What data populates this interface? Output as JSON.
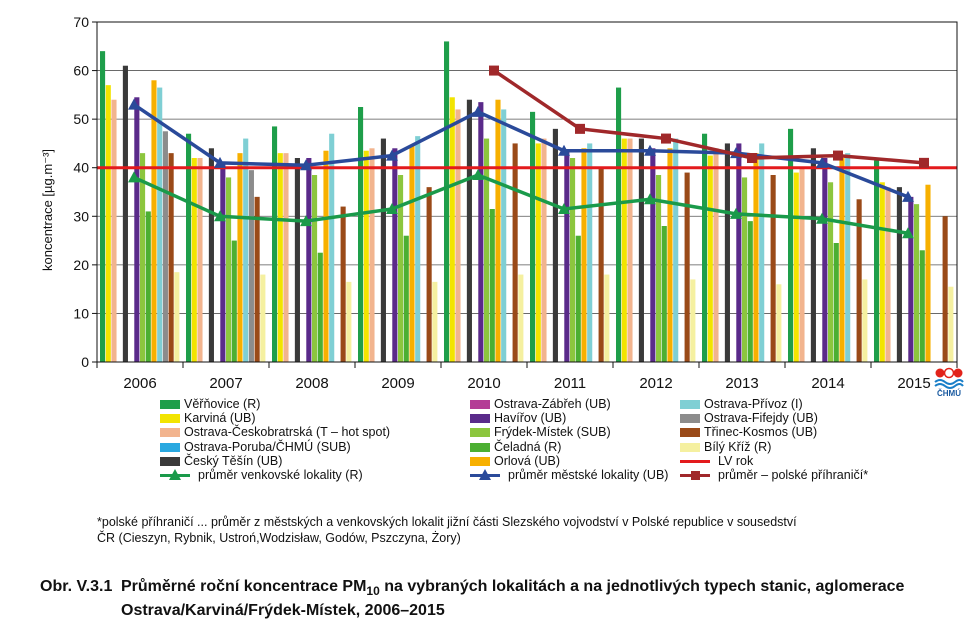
{
  "chart_data": {
    "type": "bar",
    "ylabel": "koncentrace [µg.m⁻³]",
    "ylim": [
      0,
      70
    ],
    "yticks": [
      0,
      10,
      20,
      30,
      40,
      50,
      60,
      70
    ],
    "categories": [
      "2006",
      "2007",
      "2008",
      "2009",
      "2010",
      "2011",
      "2012",
      "2013",
      "2014",
      "2015"
    ],
    "grid": true,
    "limit_value": 40,
    "series": [
      {
        "name": "Věřňovice (R)",
        "color": "#1e9e4a",
        "values": [
          64,
          47,
          48.5,
          52.5,
          66,
          51.5,
          56.5,
          47,
          48,
          41.5
        ]
      },
      {
        "name": "Karviná (UB)",
        "color": "#f2e400",
        "values": [
          57,
          42,
          43,
          43.5,
          54.5,
          45,
          46,
          42.5,
          39,
          37
        ]
      },
      {
        "name": "Ostrava-Českobratrská (T – hot spot)",
        "color": "#f2b48e",
        "values": [
          54,
          42,
          43,
          44,
          52,
          46,
          46,
          44,
          40,
          36
        ]
      },
      {
        "name": "Ostrava-Poruba/ČHMÚ (SUB)",
        "color": "#29a8e0",
        "values": [
          null,
          null,
          null,
          null,
          null,
          null,
          null,
          null,
          null,
          null
        ]
      },
      {
        "name": "Český Těšín (UB)",
        "color": "#3a3a3a",
        "values": [
          61,
          44,
          42,
          46,
          54,
          48,
          46,
          45,
          44,
          36
        ]
      },
      {
        "name": "Ostrava-Zábřeh (UB)",
        "color": "#b43c96",
        "values": [
          null,
          null,
          null,
          null,
          null,
          null,
          null,
          null,
          null,
          null
        ]
      },
      {
        "name": "Havířov (UB)",
        "color": "#5a2a8a",
        "values": [
          54.5,
          41,
          42,
          44,
          53.5,
          43.5,
          44,
          45,
          42,
          34
        ]
      },
      {
        "name": "Frýdek-Místek (SUB)",
        "color": "#8cc63e",
        "values": [
          43,
          38,
          38.5,
          38.5,
          46,
          42,
          38.5,
          38,
          37,
          32.5
        ]
      },
      {
        "name": "Čeladná (R)",
        "color": "#4caf32",
        "values": [
          31,
          25,
          22.5,
          26,
          31.5,
          26,
          28,
          29,
          24.5,
          23
        ]
      },
      {
        "name": "Orlová (UB)",
        "color": "#f7b000",
        "values": [
          58,
          43,
          43.5,
          44.5,
          54,
          44,
          44,
          43,
          42,
          36.5
        ]
      },
      {
        "name": "Ostrava-Přívoz (I)",
        "color": "#7fcfd4",
        "values": [
          56.5,
          46,
          47,
          46.5,
          52,
          45,
          46,
          45,
          43,
          null
        ]
      },
      {
        "name": "Ostrava-Fifejdy (UB)",
        "color": "#8c8c8c",
        "values": [
          47.5,
          39.5,
          null,
          null,
          null,
          null,
          null,
          null,
          null,
          null
        ]
      },
      {
        "name": "Třinec-Kosmos (UB)",
        "color": "#9a4a18",
        "values": [
          43,
          34,
          32,
          36,
          45,
          40,
          39,
          38.5,
          33.5,
          30
        ]
      },
      {
        "name": "Bílý Kříž (R)",
        "color": "#f5f0a0",
        "values": [
          18.5,
          18,
          16.5,
          16.5,
          18,
          18,
          17,
          16,
          17,
          15.5
        ]
      },
      {
        "name": "LV rok",
        "color": "#e31a1c",
        "values": [
          40,
          40,
          40,
          40,
          40,
          40,
          40,
          40,
          40,
          40
        ]
      },
      {
        "name": "průměr venkovské lokality (R)",
        "color": "#1a9a4a",
        "values": [
          38,
          30,
          29,
          31.5,
          38.5,
          31.5,
          33.5,
          30.5,
          29.5,
          26.5
        ]
      },
      {
        "name": "průměr městské lokality (UB)",
        "color": "#2a4a9a",
        "values": [
          53,
          41,
          40.5,
          42.5,
          51.5,
          43.5,
          43.5,
          43,
          41,
          34
        ]
      },
      {
        "name": "průměr – polské příhraničí*",
        "color": "#a0282a",
        "values": [
          null,
          null,
          null,
          null,
          60,
          48,
          46,
          42,
          42.5,
          41
        ]
      }
    ]
  },
  "legend": {
    "col1": [
      "Věřňovice (R)",
      "Karviná (UB)",
      "Ostrava-Českobratrská (T – hot spot)",
      "Ostrava-Poruba/ČHMÚ (SUB)",
      "Český Těšín (UB)",
      "průměr venkovské lokality (R)"
    ],
    "col2": [
      "Ostrava-Zábřeh (UB)",
      "Havířov (UB)",
      "Frýdek-Místek (SUB)",
      "Čeladná (R)",
      "Orlová (UB)",
      "průměr městské lokality (UB)"
    ],
    "col3": [
      "Ostrava-Přívoz (I)",
      "Ostrava-Fifejdy (UB)",
      "Třinec-Kosmos (UB)",
      "Bílý Kříž (R)",
      "LV rok",
      "průměr – polské příhraničí*"
    ]
  },
  "logo_text": "ČHMÚ",
  "footnote": {
    "line1": "*polské příhraničí ... průměr z městských a venkovských lokalit jižní části Slezského vojvodství v Polské republice v sousedství",
    "line2": "ČR (Cieszyn, Rybnik, Ustroń,Wodzisław, Godów, Pszczyna, Żory)"
  },
  "caption": {
    "number": "Obr. V.3.1",
    "text_before": "Průměrné roční koncentrace PM",
    "subscript": "10",
    "text_after": " na vybraných lokalitách a na jednotlivých typech stanic, aglomerace Ostrava/Karviná/Frýdek-Místek, 2006–2015"
  }
}
